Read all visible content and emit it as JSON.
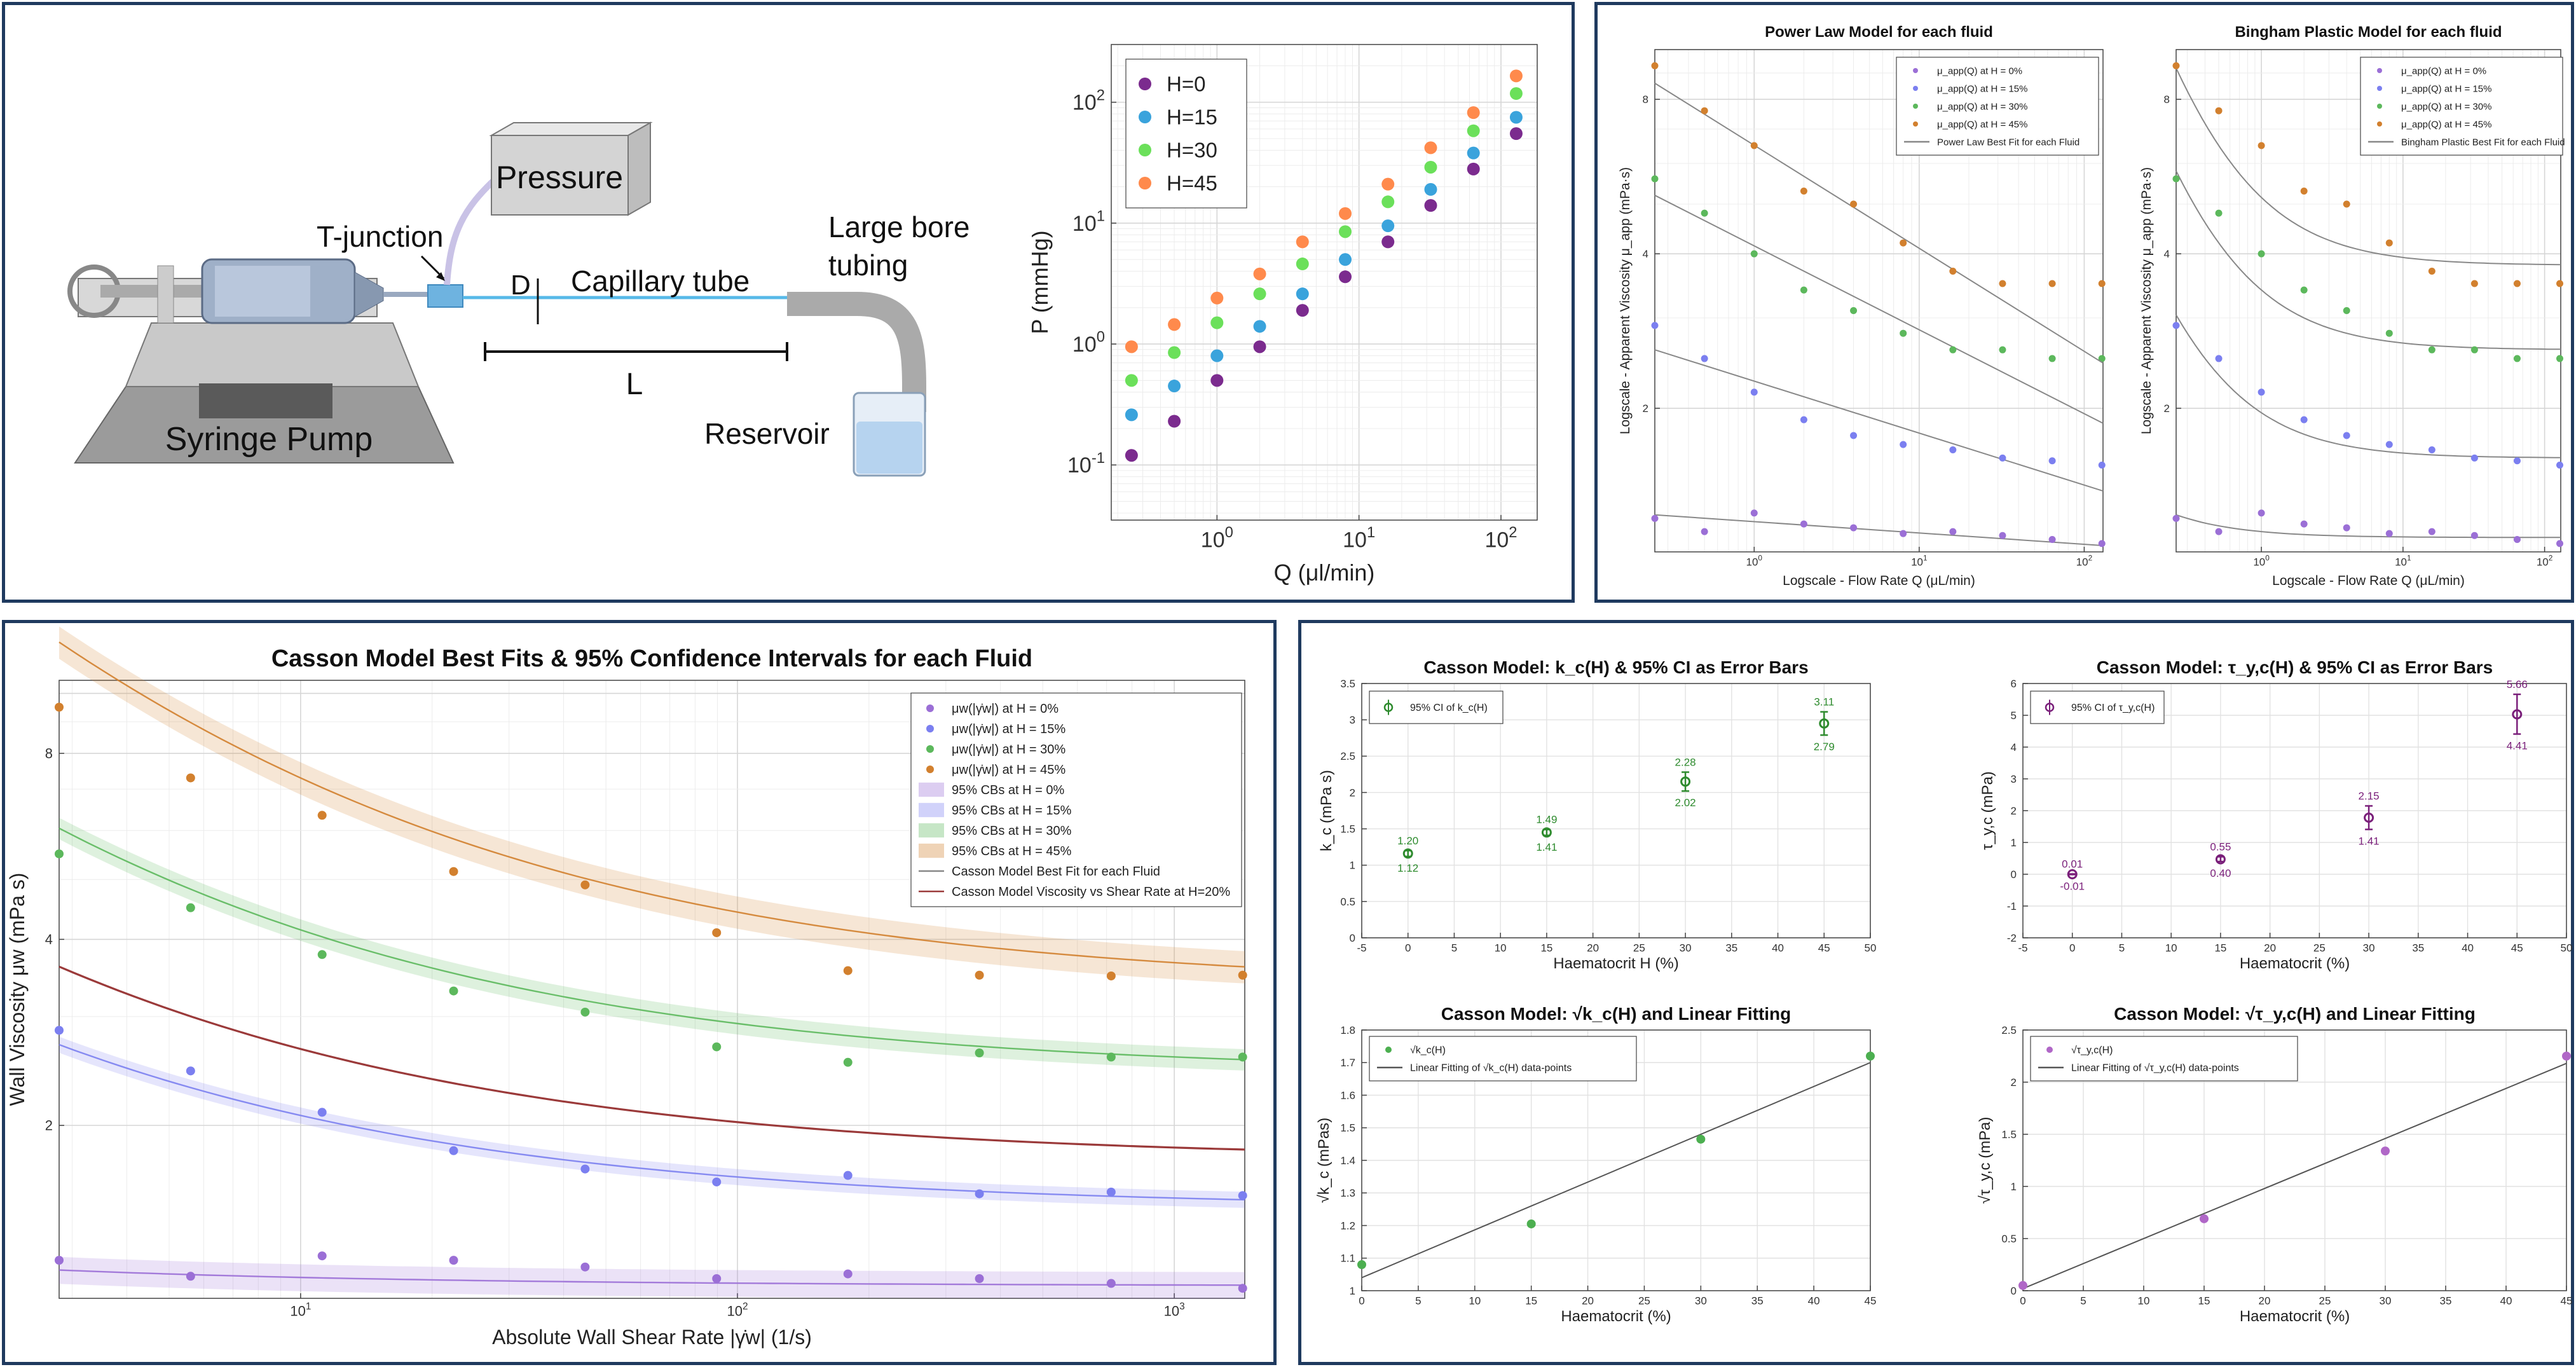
{
  "colors": {
    "h0": "#7b2b8e",
    "h15": "#3aa3dc",
    "h30": "#6be05a",
    "h45": "#ff8a4c",
    "m0": "#9b6fd6",
    "m15": "#7b7ff0",
    "m30": "#5cb85c",
    "m45": "#d2802e",
    "fit": "#888888",
    "h20": "#9b3a3a",
    "purple": "#7a1f7a",
    "green": "#2e8b2e",
    "frame": "#1f3a5f"
  },
  "diagram": {
    "pressure": "Pressure",
    "tjunction": "T-junction",
    "d": "D",
    "capillary": "Capillary tube",
    "largebore1": "Large bore",
    "largebore2": "tubing",
    "l": "L",
    "pump": "Syringe Pump",
    "reservoir": "Reservoir"
  },
  "chart_data": [
    {
      "id": "pq",
      "type": "scatter",
      "xlabel": "Q (μl/min)",
      "ylabel": "P (mmHg)",
      "xscale": "log",
      "yscale": "log",
      "xlim": [
        0.18,
        180
      ],
      "ylim": [
        0.035,
        300
      ],
      "xticks": [
        1,
        10,
        100
      ],
      "xticklabels": [
        "10^0",
        "10^1",
        "10^2"
      ],
      "yticks": [
        0.1,
        1,
        10,
        100
      ],
      "yticklabels": [
        "10^-1",
        "10^0",
        "10^1",
        "10^2"
      ],
      "grid": true,
      "legend_position": "top-left",
      "x": [
        0.25,
        0.5,
        1,
        2,
        4,
        8,
        16,
        32,
        64,
        128
      ],
      "series": [
        {
          "name": "H=0",
          "color_key": "h0",
          "values": [
            0.12,
            0.23,
            0.5,
            0.95,
            1.9,
            3.6,
            7,
            14,
            28,
            55
          ]
        },
        {
          "name": "H=15",
          "color_key": "h15",
          "values": [
            0.26,
            0.45,
            0.8,
            1.4,
            2.6,
            5,
            9.5,
            19,
            38,
            75
          ]
        },
        {
          "name": "H=30",
          "color_key": "h30",
          "values": [
            0.5,
            0.85,
            1.5,
            2.6,
            4.6,
            8.5,
            15,
            29,
            58,
            118
          ]
        },
        {
          "name": "H=45",
          "color_key": "h45",
          "values": [
            0.95,
            1.45,
            2.4,
            3.8,
            7,
            12,
            21,
            42,
            82,
            165
          ]
        }
      ]
    },
    {
      "id": "power",
      "type": "scatter",
      "title": "Power Law Model for each fluid",
      "xlabel": "Logscale - Flow Rate Q (μL/min)",
      "ylabel": "Logscale - Apparent Viscosity μ_app (mPa·s)",
      "xscale": "log",
      "yscale": "log",
      "xlim": [
        0.25,
        130
      ],
      "ylim": [
        1.05,
        10
      ],
      "xticks": [
        1,
        10,
        100
      ],
      "xticklabels": [
        "10^0",
        "10^1",
        "10^2"
      ],
      "yticks": [
        2,
        4,
        8
      ],
      "yticklabels": [
        "2",
        "4",
        "8"
      ],
      "grid": true,
      "legend_position": "top-right",
      "legend": [
        "μ_app(Q) at H = 0%",
        "μ_app(Q) at H = 15%",
        "μ_app(Q) at H = 30%",
        "μ_app(Q) at H = 45%",
        "Power Law Best Fit for each Fluid"
      ],
      "fit_label": "Power Law Best Fit for each Fluid",
      "x": [
        0.25,
        0.5,
        1,
        2,
        4,
        8,
        16,
        32,
        64,
        128
      ],
      "series": [
        {
          "name": "μ_app(Q) at H = 0%",
          "color_key": "m0",
          "values": [
            1.22,
            1.15,
            1.25,
            1.19,
            1.17,
            1.14,
            1.15,
            1.13,
            1.11,
            1.09
          ],
          "fit": [
            1.24,
            1.08
          ]
        },
        {
          "name": "μ_app(Q) at H = 15%",
          "color_key": "m15",
          "values": [
            2.9,
            2.5,
            2.15,
            1.9,
            1.77,
            1.7,
            1.66,
            1.6,
            1.58,
            1.55
          ],
          "fit": [
            2.6,
            1.38
          ]
        },
        {
          "name": "μ_app(Q) at H = 30%",
          "color_key": "m30",
          "values": [
            5.6,
            4.8,
            4.0,
            3.4,
            3.1,
            2.8,
            2.6,
            2.6,
            2.5,
            2.5
          ],
          "fit": [
            5.2,
            1.87
          ]
        },
        {
          "name": "μ_app(Q) at H = 45%",
          "color_key": "m45",
          "values": [
            9.3,
            7.6,
            6.5,
            5.3,
            5.0,
            4.2,
            3.7,
            3.5,
            3.5,
            3.5
          ],
          "fit": [
            8.6,
            2.45
          ]
        }
      ]
    },
    {
      "id": "bingham",
      "type": "scatter",
      "title": "Bingham Plastic Model for each fluid",
      "xlabel": "Logscale - Flow Rate Q (μL/min)",
      "ylabel": "Logscale - Apparent Viscosity μ_app (mPa·s)",
      "xscale": "log",
      "yscale": "log",
      "xlim": [
        0.25,
        130
      ],
      "ylim": [
        1.05,
        10
      ],
      "xticks": [
        1,
        10,
        100
      ],
      "xticklabels": [
        "10^0",
        "10^1",
        "10^2"
      ],
      "yticks": [
        2,
        4,
        8
      ],
      "yticklabels": [
        "2",
        "4",
        "8"
      ],
      "grid": true,
      "legend_position": "top-right",
      "legend": [
        "μ_app(Q) at H = 0%",
        "μ_app(Q) at H = 15%",
        "μ_app(Q) at H = 30%",
        "μ_app(Q) at H = 45%",
        "Bingham Plastic Best Fit for each Fluid"
      ],
      "fit_label": "Bingham Plastic Best Fit for each Fluid",
      "x": [
        0.25,
        0.5,
        1,
        2,
        4,
        8,
        16,
        32,
        64,
        128
      ],
      "series": [
        {
          "name": "μ_app(Q) at H = 0%",
          "color_key": "m0",
          "values": [
            1.22,
            1.15,
            1.25,
            1.19,
            1.17,
            1.14,
            1.15,
            1.13,
            1.11,
            1.09
          ],
          "fit_inf": 1.12,
          "fit_a": 0.03
        },
        {
          "name": "μ_app(Q) at H = 15%",
          "color_key": "m15",
          "values": [
            2.9,
            2.5,
            2.15,
            1.9,
            1.77,
            1.7,
            1.66,
            1.6,
            1.58,
            1.55
          ],
          "fit_inf": 1.6,
          "fit_a": 0.36
        },
        {
          "name": "μ_app(Q) at H = 30%",
          "color_key": "m30",
          "values": [
            5.6,
            4.8,
            4.0,
            3.4,
            3.1,
            2.8,
            2.6,
            2.6,
            2.5,
            2.5
          ],
          "fit_inf": 2.6,
          "fit_a": 0.8
        },
        {
          "name": "μ_app(Q) at H = 45%",
          "color_key": "m45",
          "values": [
            9.3,
            7.6,
            6.5,
            5.3,
            5.0,
            4.2,
            3.7,
            3.5,
            3.5,
            3.5
          ],
          "fit_inf": 3.8,
          "fit_a": 1.35
        }
      ]
    },
    {
      "id": "casson",
      "type": "scatter",
      "title": "Casson Model Best Fits & 95% Confidence Intervals for each Fluid",
      "xlabel": "Absolute Wall Shear Rate |γ̇w| (1/s)",
      "ylabel": "Wall Viscosity μw (mPa s)",
      "xscale": "log",
      "yscale": "log",
      "xlim": [
        2.8,
        1450
      ],
      "ylim": [
        1.05,
        10.5
      ],
      "xticks": [
        10,
        100,
        1000
      ],
      "xticklabels": [
        "10^1",
        "10^2",
        "10^3"
      ],
      "yticks": [
        2,
        4,
        8
      ],
      "yticklabels": [
        "2",
        "4",
        "8"
      ],
      "grid": true,
      "legend_position": "top-right",
      "legend": [
        "μw(|γ̇w|) at H = 0%",
        "μw(|γ̇w|) at H = 15%",
        "μw(|γ̇w|) at H = 30%",
        "μw(|γ̇w|) at H = 45%",
        "95% CBs at H = 0%",
        "95% CBs at H = 15%",
        "95% CBs at H = 30%",
        "95% CBs at H = 45%",
        "Casson Model Best Fit for each Fluid",
        "Casson Model Viscosity vs Shear Rate at H=20%"
      ],
      "x": [
        2.8,
        5.6,
        11.2,
        22.4,
        44.8,
        89.6,
        179,
        358,
        717,
        1434
      ],
      "series": [
        {
          "name": "μw(|γ̇w|) at H = 0%",
          "color_key": "m0",
          "values": [
            1.21,
            1.14,
            1.23,
            1.21,
            1.18,
            1.13,
            1.15,
            1.13,
            1.11,
            1.09
          ],
          "fit_inf": 1.1,
          "fit_a": 0.11,
          "band": 0.05
        },
        {
          "name": "μw(|γ̇w|) at H = 15%",
          "color_key": "m15",
          "values": [
            2.85,
            2.45,
            2.1,
            1.82,
            1.7,
            1.62,
            1.66,
            1.55,
            1.56,
            1.54
          ],
          "fit_inf": 1.47,
          "fit_a": 1.75,
          "band": 0.03
        },
        {
          "name": "μw(|γ̇w|) at H = 30%",
          "color_key": "m30",
          "values": [
            5.5,
            4.5,
            3.78,
            3.3,
            3.05,
            2.68,
            2.53,
            2.62,
            2.58,
            2.58
          ],
          "fit_inf": 2.43,
          "fit_a": 4.7,
          "band": 0.04
        },
        {
          "name": "μw(|γ̇w|) at H = 45%",
          "color_key": "m45",
          "values": [
            9.5,
            7.3,
            6.35,
            5.15,
            4.9,
            4.1,
            3.56,
            3.5,
            3.49,
            3.5
          ],
          "fit_inf": 3.34,
          "fit_a": 10.1,
          "band": 0.06
        },
        {
          "name": "Casson Model Viscosity vs Shear Rate at H=20%",
          "color_key": "h20",
          "fit_inf": 1.76,
          "fit_a": 2.55
        }
      ]
    },
    {
      "id": "kc",
      "type": "scatter",
      "title": "Casson Model: k_c(H) & 95% CI as Error Bars",
      "xlabel": "Haematocrit H (%)",
      "ylabel": "k_c (mPa s)",
      "xlim": [
        -5,
        50
      ],
      "ylim": [
        0,
        3.5
      ],
      "xticks": [
        -5,
        0,
        5,
        10,
        15,
        20,
        25,
        30,
        35,
        40,
        45,
        50
      ],
      "yticks": [
        0,
        0.5,
        1,
        1.5,
        2,
        2.5,
        3,
        3.5
      ],
      "grid": true,
      "legend_position": "top-left",
      "legend": [
        "95% CI of k_c(H)"
      ],
      "x": [
        0,
        15,
        30,
        45
      ],
      "values": [
        1.16,
        1.45,
        2.15,
        2.95
      ],
      "upper": [
        1.2,
        1.49,
        2.28,
        3.11
      ],
      "lower": [
        1.12,
        1.41,
        2.02,
        2.79
      ],
      "upper_labels": [
        "1.20",
        "1.49",
        "2.28",
        "3.11"
      ],
      "lower_labels": [
        "1.12",
        "1.41",
        "2.02",
        "2.79"
      ]
    },
    {
      "id": "tau",
      "type": "scatter",
      "title": "Casson Model: τ_y,c(H) & 95% CI as Error Bars",
      "xlabel": "Haematocrit (%)",
      "ylabel": "τ_y,c (mPa)",
      "xlim": [
        -5,
        50
      ],
      "ylim": [
        -2,
        6
      ],
      "xticks": [
        -5,
        0,
        5,
        10,
        15,
        20,
        25,
        30,
        35,
        40,
        45,
        50
      ],
      "yticks": [
        -2,
        -1,
        0,
        1,
        2,
        3,
        4,
        5,
        6
      ],
      "grid": true,
      "legend_position": "top-left",
      "legend": [
        "95% CI of τ_y,c(H)"
      ],
      "x": [
        0,
        15,
        30,
        45
      ],
      "values": [
        0.0,
        0.47,
        1.78,
        5.03
      ],
      "upper": [
        0.01,
        0.55,
        2.15,
        5.66
      ],
      "lower": [
        -0.01,
        0.4,
        1.41,
        4.41
      ],
      "upper_labels": [
        "0.01",
        "0.55",
        "2.15",
        "5.66"
      ],
      "lower_labels": [
        "-0.01",
        "0.40",
        "1.41",
        "4.41"
      ]
    },
    {
      "id": "sqrtk",
      "type": "scatter",
      "title": "Casson Model: √k_c(H) and Linear Fitting",
      "xlabel": "Haematocrit (%)",
      "ylabel": "√k_c (mPas)",
      "xlim": [
        0,
        45
      ],
      "ylim": [
        1,
        1.8
      ],
      "xticks": [
        0,
        5,
        10,
        15,
        20,
        25,
        30,
        35,
        40,
        45
      ],
      "yticks": [
        1,
        1.1,
        1.2,
        1.3,
        1.4,
        1.5,
        1.6,
        1.7,
        1.8
      ],
      "grid": true,
      "legend_position": "top-left",
      "legend": [
        "√k_c(H)",
        "Linear Fitting of √k_c(H) data-points"
      ],
      "x": [
        0,
        15,
        30,
        45
      ],
      "values": [
        1.08,
        1.205,
        1.465,
        1.72
      ],
      "fit": [
        1.04,
        1.7
      ]
    },
    {
      "id": "sqrttau",
      "type": "scatter",
      "title": "Casson Model: √τ_y,c(H) and Linear Fitting",
      "xlabel": "Haematocrit (%)",
      "ylabel": "√τ_y,c (mPa)",
      "xlim": [
        0,
        45
      ],
      "ylim": [
        0,
        2.5
      ],
      "xticks": [
        0,
        5,
        10,
        15,
        20,
        25,
        30,
        35,
        40,
        45
      ],
      "yticks": [
        0,
        0.5,
        1,
        1.5,
        2,
        2.5
      ],
      "grid": true,
      "legend_position": "top-left",
      "legend": [
        "√τ_y,c(H)",
        "Linear Fitting of √τ_y,c(H) data-points"
      ],
      "x": [
        0,
        15,
        30,
        45
      ],
      "values": [
        0.05,
        0.69,
        1.34,
        2.25
      ],
      "fit": [
        0.02,
        2.18
      ]
    }
  ]
}
